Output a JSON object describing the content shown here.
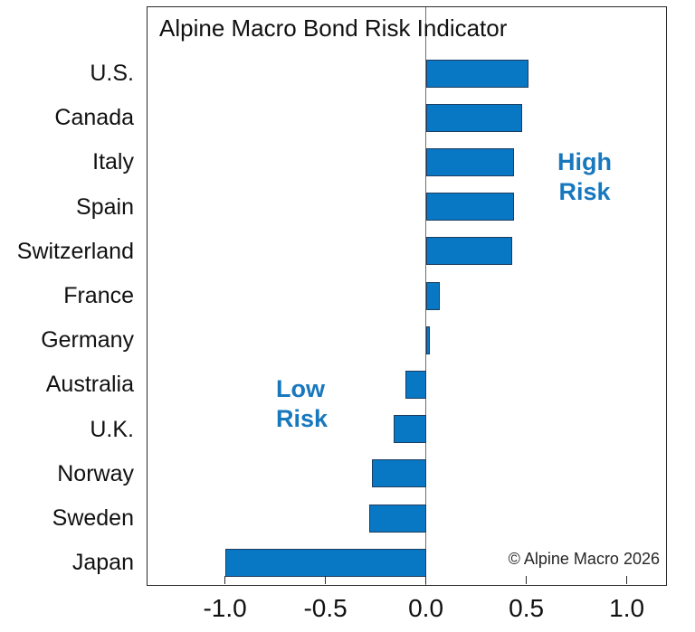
{
  "title": "Alpine Macro Bond Risk Indicator",
  "copyright": "© Alpine Macro 2026",
  "annotations": {
    "high_risk": [
      "High",
      "Risk"
    ],
    "low_risk": [
      "Low",
      "Risk"
    ]
  },
  "chart_data": {
    "type": "bar",
    "orientation": "horizontal",
    "title": "Alpine Macro Bond Risk Indicator",
    "categories": [
      "U.S.",
      "Canada",
      "Italy",
      "Spain",
      "Switzerland",
      "France",
      "Germany",
      "Australia",
      "U.K.",
      "Norway",
      "Sweden",
      "Japan"
    ],
    "values": [
      0.51,
      0.48,
      0.44,
      0.44,
      0.43,
      0.07,
      0.02,
      -0.1,
      -0.16,
      -0.27,
      -0.28,
      -1.0
    ],
    "xlabel": "",
    "ylabel": "",
    "xlim": [
      -1.39,
      1.2
    ],
    "x_ticks": [
      -1.0,
      -0.5,
      0.0,
      0.5,
      1.0
    ],
    "x_tick_labels": [
      "-1.0",
      "-0.5",
      "0.0",
      "0.5",
      "1.0"
    ],
    "grid": false,
    "legend": false,
    "zero_line": true,
    "annotations": [
      {
        "text": "High Risk",
        "side": "positive",
        "color": "#1878BE"
      },
      {
        "text": "Low Risk",
        "side": "negative",
        "color": "#1878BE"
      }
    ],
    "colors": {
      "bar_fill": "#0877C4",
      "bar_border": "#1D3D5F",
      "risk_text": "#1878BE",
      "axis": "#2B2B2B",
      "zero_line": "#6E6E6E",
      "text": "#111111"
    }
  }
}
